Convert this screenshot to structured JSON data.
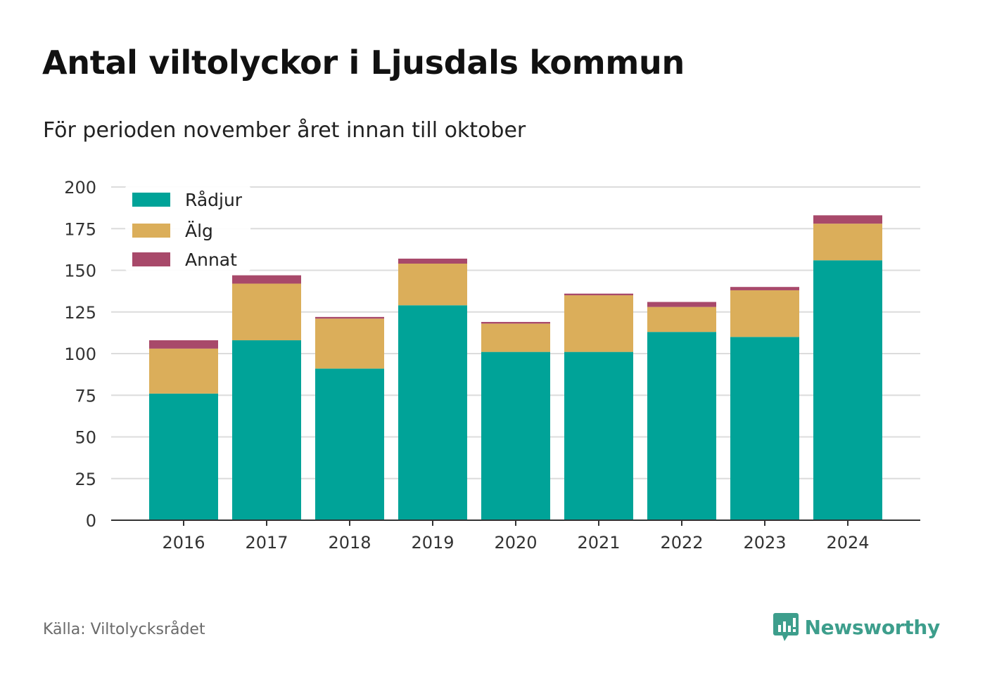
{
  "title": "Antal viltolyckor i Ljusdals kommun",
  "subtitle": "För perioden november året innan till oktober",
  "source": "Källa: Viltolycksrådet",
  "brand": {
    "name": "Newsworthy",
    "icon": "newsworthy-logo-icon",
    "color": "#3d9e8c"
  },
  "chart_data": {
    "type": "bar",
    "stacked": true,
    "categories": [
      "2016",
      "2017",
      "2018",
      "2019",
      "2020",
      "2021",
      "2022",
      "2023",
      "2024"
    ],
    "series": [
      {
        "name": "Rådjur",
        "color": "#00a398",
        "values": [
          76,
          108,
          91,
          129,
          101,
          101,
          113,
          110,
          156
        ]
      },
      {
        "name": "Älg",
        "color": "#dbae5a",
        "values": [
          27,
          34,
          30,
          25,
          17,
          34,
          15,
          28,
          22
        ]
      },
      {
        "name": "Annat",
        "color": "#a8496a",
        "values": [
          5,
          5,
          1,
          3,
          1,
          1,
          3,
          2,
          5
        ]
      }
    ],
    "ylim": [
      0,
      200
    ],
    "yticks": [
      "0",
      "25",
      "50",
      "75",
      "100",
      "125",
      "150",
      "175",
      "200"
    ],
    "xlabel": "",
    "ylabel": "",
    "grid": true,
    "legend_position": "top-left"
  }
}
